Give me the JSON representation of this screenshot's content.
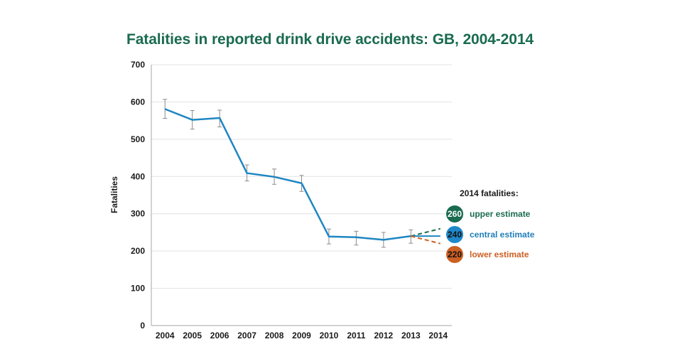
{
  "chart_data": {
    "type": "line",
    "title": "Fatalities in reported drink drive accidents: GB, 2004-2014",
    "xlabel": "",
    "ylabel": "Fatalities",
    "ylim": [
      0,
      700
    ],
    "yticks": [
      0,
      100,
      200,
      300,
      400,
      500,
      600,
      700
    ],
    "categories": [
      "2004",
      "2005",
      "2006",
      "2007",
      "2008",
      "2009",
      "2010",
      "2011",
      "2012",
      "2013",
      "2014"
    ],
    "grid": true,
    "series": [
      {
        "name": "Fatalities",
        "color": "#1f86c2",
        "x": [
          "2004",
          "2005",
          "2006",
          "2007",
          "2008",
          "2009",
          "2010",
          "2011",
          "2012",
          "2013"
        ],
        "values": [
          581,
          552,
          557,
          409,
          399,
          382,
          239,
          237,
          230,
          240
        ],
        "error_low": [
          556,
          527,
          533,
          388,
          379,
          360,
          219,
          216,
          210,
          221
        ],
        "error_high": [
          607,
          577,
          578,
          431,
          420,
          403,
          259,
          253,
          250,
          257
        ]
      }
    ],
    "projections": [
      {
        "name": "upper estimate",
        "from": "2013",
        "to": "2014",
        "from_value": 240,
        "value": 260,
        "color": "#1a6b50",
        "dashed": true
      },
      {
        "name": "central estimate",
        "from": "2013",
        "to": "2014",
        "from_value": 240,
        "value": 240,
        "color": "#1f86c2",
        "dashed": false
      },
      {
        "name": "lower estimate",
        "from": "2013",
        "to": "2014",
        "from_value": 240,
        "value": 220,
        "color": "#cc5f22",
        "dashed": true
      }
    ],
    "legend": {
      "title": "2014 fatalities:",
      "placement": "right",
      "items": [
        {
          "value": "260",
          "label": "upper estimate",
          "color": "#1a6b50",
          "text_color": "#ffffff",
          "label_color": "#1a6b50"
        },
        {
          "value": "240",
          "label": "central estimate",
          "color": "#1f88c8",
          "text_color": "#111111",
          "label_color": "#1f7fb8"
        },
        {
          "value": "220",
          "label": "lower estimate",
          "color": "#cc5f22",
          "text_color": "#111111",
          "label_color": "#cc5f22"
        }
      ]
    }
  }
}
